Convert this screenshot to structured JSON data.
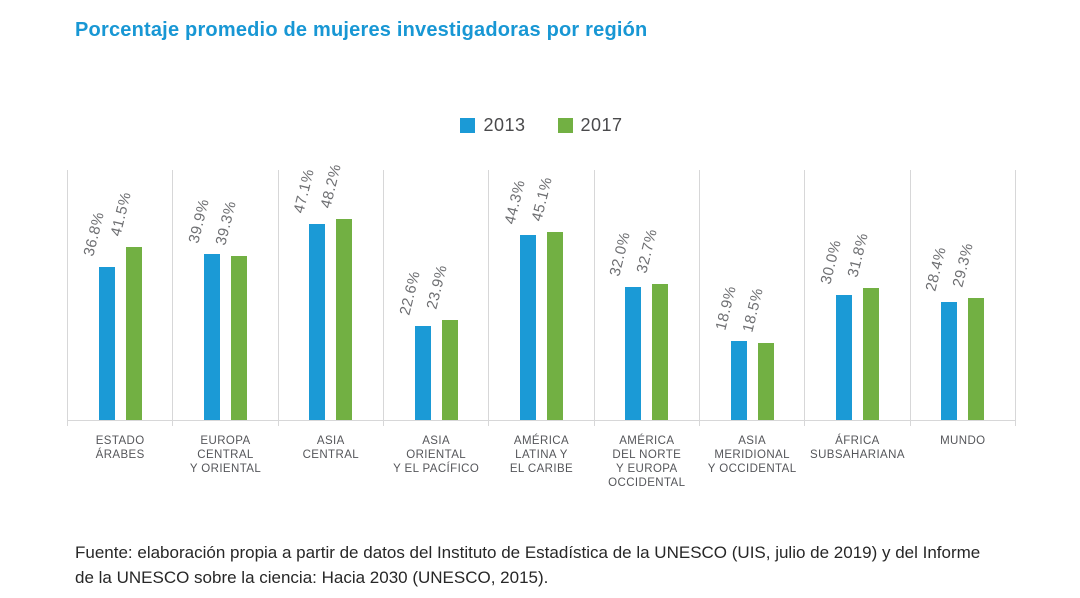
{
  "title": "Porcentaje promedio de mujeres investigadoras por región",
  "colors": {
    "title": "#1897d4",
    "bar_2013": "#1b9ad6",
    "bar_2017": "#72b043",
    "grid": "#d7d7d8",
    "value_label": "#6e6f72",
    "category_label": "#55565a",
    "source_text": "#272727"
  },
  "chart_data": {
    "type": "bar",
    "title": "Porcentaje promedio de mujeres investigadoras por región",
    "categories": [
      "ESTADO ÁRABES",
      "EUROPA CENTRAL Y ORIENTAL",
      "ASIA CENTRAL",
      "ASIA ORIENTAL Y EL PACÍFICO",
      "AMÉRICA LATINA Y EL CARIBE",
      "AMÉRICA DEL NORTE Y EUROPA OCCIDENTAL",
      "ASIA MERIDIONAL Y OCCIDENTAL",
      "ÁFRICA SUBSAHARIANA",
      "MUNDO"
    ],
    "category_lines": [
      [
        "ESTADO",
        "ÁRABES"
      ],
      [
        "EUROPA",
        "CENTRAL",
        "Y ORIENTAL"
      ],
      [
        "ASIA",
        "CENTRAL"
      ],
      [
        "ASIA",
        "ORIENTAL",
        "Y EL PACÍFICO"
      ],
      [
        "AMÉRICA",
        "LATINA Y",
        "EL CARIBE"
      ],
      [
        "AMÉRICA",
        "DEL NORTE",
        "Y EUROPA",
        "OCCIDENTAL"
      ],
      [
        "ASIA",
        "MERIDIONAL",
        "Y OCCIDENTAL"
      ],
      [
        "ÁFRICA",
        "SUBSAHARIANA"
      ],
      [
        "MUNDO"
      ]
    ],
    "series": [
      {
        "name": "2013",
        "color": "#1b9ad6",
        "values": [
          36.8,
          39.9,
          47.1,
          22.6,
          44.3,
          32.0,
          18.9,
          30.0,
          28.4
        ]
      },
      {
        "name": "2017",
        "color": "#72b043",
        "values": [
          41.5,
          39.3,
          48.2,
          23.9,
          45.1,
          32.7,
          18.5,
          31.8,
          29.3
        ]
      }
    ],
    "value_suffix": "%",
    "ylim": [
      0,
      60
    ],
    "grid": "vertical-panel-dividers",
    "legend_position": "top-center",
    "xlabel": "",
    "ylabel": ""
  },
  "source": "Fuente: elaboración propia a partir de datos del Instituto de Estadística de la UNESCO (UIS, julio de 2019) y del Informe de la UNESCO sobre la ciencia: Hacia 2030 (UNESCO, 2015)."
}
